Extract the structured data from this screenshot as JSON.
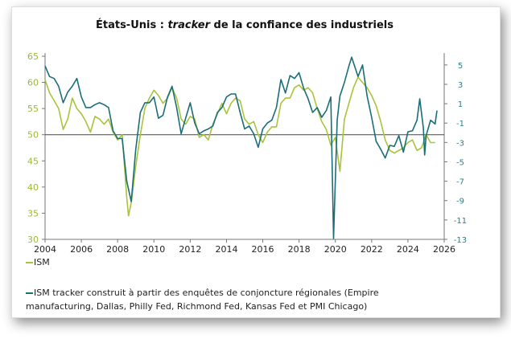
{
  "chart_data": {
    "type": "line",
    "title_prefix": "États-Unis : ",
    "title_em": "tracker",
    "title_suffix": " de la confiance des industriels",
    "x_ticks": [
      "2004",
      "2006",
      "2008",
      "2010",
      "2012",
      "2014",
      "2016",
      "2018",
      "2020",
      "2022",
      "2024",
      "2026"
    ],
    "xlim": [
      2004,
      2026
    ],
    "y_left": {
      "ylim": [
        30,
        65
      ],
      "ticks": [
        "30",
        "35",
        "40",
        "45",
        "50",
        "55",
        "60",
        "65"
      ],
      "color": "#9bb83a"
    },
    "y_right": {
      "ylim": [
        -13,
        5.9
      ],
      "ticks": [
        "-13",
        "-11",
        "-9",
        "-7",
        "-5",
        "-3",
        "-1",
        "1",
        "3",
        "5"
      ],
      "color": "#2f7f86"
    },
    "reference_line": 50,
    "grid": false,
    "legend_position": "bottom",
    "series": [
      {
        "name": "ISM",
        "axis": "left",
        "color": "#a8c43c",
        "x": [
          2004,
          2004.25,
          2004.5,
          2004.75,
          2005,
          2005.25,
          2005.5,
          2005.75,
          2006,
          2006.25,
          2006.5,
          2006.75,
          2007,
          2007.25,
          2007.5,
          2007.75,
          2008,
          2008.25,
          2008.5,
          2008.6,
          2008.75,
          2009,
          2009.25,
          2009.5,
          2009.75,
          2010,
          2010.25,
          2010.5,
          2010.75,
          2011,
          2011.25,
          2011.5,
          2011.75,
          2012,
          2012.25,
          2012.5,
          2012.75,
          2013,
          2013.25,
          2013.5,
          2013.75,
          2014,
          2014.25,
          2014.5,
          2014.75,
          2015,
          2015.25,
          2015.5,
          2015.75,
          2016,
          2016.25,
          2016.5,
          2016.75,
          2017,
          2017.25,
          2017.5,
          2017.75,
          2018,
          2018.25,
          2018.5,
          2018.75,
          2019,
          2019.25,
          2019.5,
          2019.75,
          2020,
          2020.25,
          2020.5,
          2020.75,
          2021,
          2021.25,
          2021.5,
          2021.75,
          2022,
          2022.25,
          2022.5,
          2022.75,
          2023,
          2023.25,
          2023.5,
          2023.75,
          2024,
          2024.25,
          2024.5,
          2024.75,
          2025,
          2025.25,
          2025.5
        ],
        "values": [
          60.5,
          58,
          56.5,
          55,
          51,
          53,
          57,
          55,
          54,
          52.5,
          50.5,
          53.5,
          53,
          52,
          53,
          50.5,
          49,
          50,
          38,
          34.5,
          37,
          44,
          50,
          55,
          57,
          58.5,
          57.5,
          56,
          57,
          59,
          57,
          53,
          52,
          53.5,
          53,
          49.5,
          50,
          49,
          52,
          54,
          56,
          54,
          56,
          57,
          56.5,
          53,
          52,
          52.5,
          50,
          48.5,
          50.5,
          51.5,
          51.5,
          56,
          57,
          57,
          59,
          59.5,
          58.5,
          59,
          58,
          55,
          52.5,
          51,
          48,
          49.5,
          43,
          53,
          56,
          59,
          61,
          60,
          59,
          57.5,
          55.5,
          52.5,
          49,
          47,
          46.5,
          47,
          47.5,
          48.5,
          49,
          47,
          47.5,
          50,
          48.5,
          48.5
        ]
      },
      {
        "name": "ISM tracker construit à partir des enquêtes de conjoncture régionales (Empire manufacturing, Dallas, Philly Fed, Richmond Fed, Kansas Fed et PMI Chicago)",
        "axis": "right",
        "color": "#1b6e78",
        "x": [
          2004,
          2004.25,
          2004.5,
          2004.75,
          2005,
          2005.25,
          2005.5,
          2005.75,
          2006,
          2006.25,
          2006.5,
          2006.75,
          2007,
          2007.25,
          2007.5,
          2007.75,
          2008,
          2008.25,
          2008.5,
          2008.75,
          2009,
          2009.25,
          2009.5,
          2009.75,
          2010,
          2010.25,
          2010.5,
          2010.75,
          2011,
          2011.25,
          2011.5,
          2011.75,
          2012,
          2012.25,
          2012.5,
          2012.75,
          2013,
          2013.25,
          2013.5,
          2013.75,
          2014,
          2014.25,
          2014.5,
          2014.75,
          2015,
          2015.25,
          2015.5,
          2015.75,
          2016,
          2016.25,
          2016.5,
          2016.75,
          2017,
          2017.25,
          2017.5,
          2017.75,
          2018,
          2018.25,
          2018.5,
          2018.75,
          2019,
          2019.25,
          2019.5,
          2019.75,
          2019.9,
          2020.1,
          2020.25,
          2020.5,
          2020.75,
          2020.9,
          2021.25,
          2021.5,
          2021.75,
          2022,
          2022.25,
          2022.5,
          2022.75,
          2023,
          2023.25,
          2023.5,
          2023.75,
          2024,
          2024.25,
          2024.5,
          2024.65,
          2024.85,
          2024.92,
          2025,
          2025.25,
          2025.5,
          2025.6
        ],
        "values": [
          4.9,
          3.8,
          3.6,
          2.8,
          1.1,
          2.2,
          2.8,
          3.6,
          1.7,
          0.6,
          0.6,
          0.9,
          1.1,
          0.9,
          0.6,
          -1.8,
          -2.6,
          -2.6,
          -7.0,
          -9.1,
          -3.7,
          0.1,
          1.1,
          1.1,
          1.7,
          -0.5,
          -0.2,
          1.7,
          2.8,
          0.6,
          -2.1,
          -0.5,
          1.1,
          -1.0,
          -2.1,
          -1.8,
          -1.6,
          -1.3,
          0.1,
          0.6,
          1.7,
          2.0,
          2.0,
          0.1,
          -1.6,
          -1.3,
          -2.1,
          -3.5,
          -1.6,
          -1.0,
          -0.7,
          0.6,
          3.5,
          2.1,
          3.9,
          3.6,
          4.2,
          2.6,
          1.5,
          0.1,
          0.6,
          -0.4,
          0.3,
          1.7,
          -12.9,
          -0.7,
          1.8,
          3.2,
          4.9,
          5.8,
          3.8,
          5.0,
          1.8,
          -0.4,
          -2.9,
          -3.7,
          -4.6,
          -3.3,
          -3.4,
          -2.3,
          -4.0,
          -1.9,
          -1.8,
          -0.7,
          1.5,
          -1.5,
          -4.3,
          -2.3,
          -0.7,
          -1.1,
          0.3
        ]
      }
    ]
  }
}
